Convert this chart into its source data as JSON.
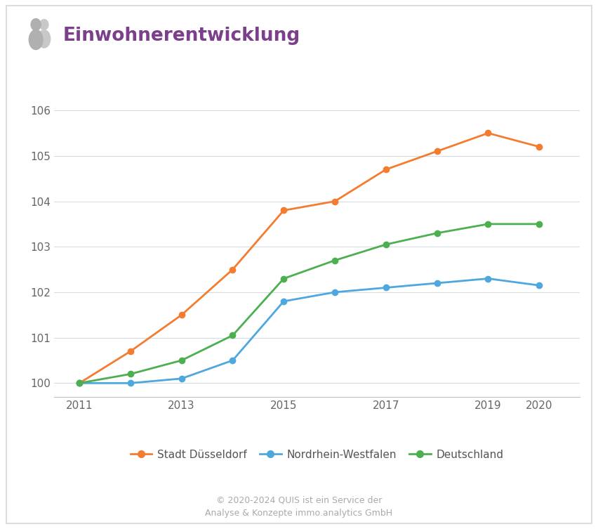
{
  "title": "Einwohnerentwicklung",
  "title_color": "#7b3f8c",
  "background_color": "#ffffff",
  "years": [
    2011,
    2012,
    2013,
    2014,
    2015,
    2016,
    2017,
    2018,
    2019,
    2020
  ],
  "duesseldorf": [
    100.0,
    100.7,
    101.5,
    102.5,
    103.8,
    104.0,
    104.7,
    105.1,
    105.5,
    105.2
  ],
  "nrw": [
    100.0,
    100.0,
    100.1,
    100.5,
    101.8,
    102.0,
    102.1,
    102.2,
    102.3,
    102.15
  ],
  "deutschland": [
    100.0,
    100.2,
    100.5,
    101.05,
    102.3,
    102.7,
    103.05,
    103.3,
    103.5,
    103.5
  ],
  "color_duesseldorf": "#f47c30",
  "color_nrw": "#4ea8de",
  "color_deutschland": "#4caf50",
  "ylim_min": 99.7,
  "ylim_max": 106.45,
  "yticks": [
    100,
    101,
    102,
    103,
    104,
    105,
    106
  ],
  "xticks": [
    2011,
    2013,
    2015,
    2017,
    2019,
    2020
  ],
  "xlim_min": 2010.5,
  "xlim_max": 2020.8,
  "legend_labels": [
    "Stadt Düsseldorf",
    "Nordrhein-Westfalen",
    "Deutschland"
  ],
  "footer_line1": "© 2020-2024 QUIS ist ein Service der",
  "footer_line2": "Analyse & Konzepte immo.analytics GmbH",
  "marker_size": 6,
  "line_width": 2.0,
  "tick_fontsize": 11,
  "legend_fontsize": 11,
  "title_fontsize": 19,
  "footer_fontsize": 9
}
